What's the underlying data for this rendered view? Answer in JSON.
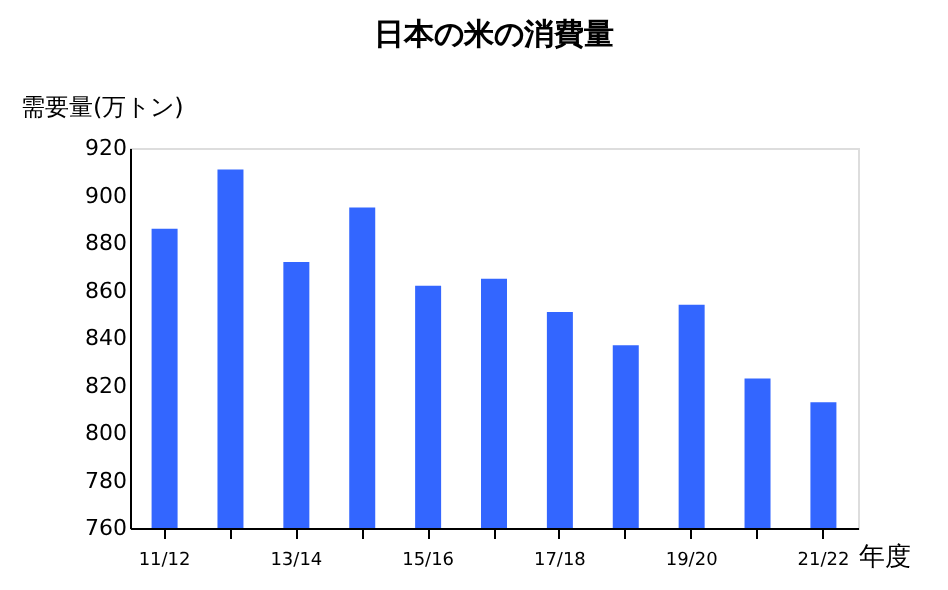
{
  "chart_data": {
    "type": "bar",
    "title": "日本の米の消費量",
    "ylabel": "需要量(万トン)",
    "xlabel": "年度",
    "categories": [
      "11/12",
      null,
      "13/14",
      null,
      "15/16",
      null,
      "17/18",
      null,
      "19/20",
      null,
      "21/22"
    ],
    "values": [
      886,
      911,
      872,
      895,
      862,
      865,
      851,
      837,
      854,
      823,
      813
    ],
    "color": "#3366ff",
    "ylim": [
      760,
      920
    ],
    "yticks": [
      760,
      780,
      800,
      820,
      840,
      860,
      880,
      900,
      920
    ],
    "grid": false
  }
}
